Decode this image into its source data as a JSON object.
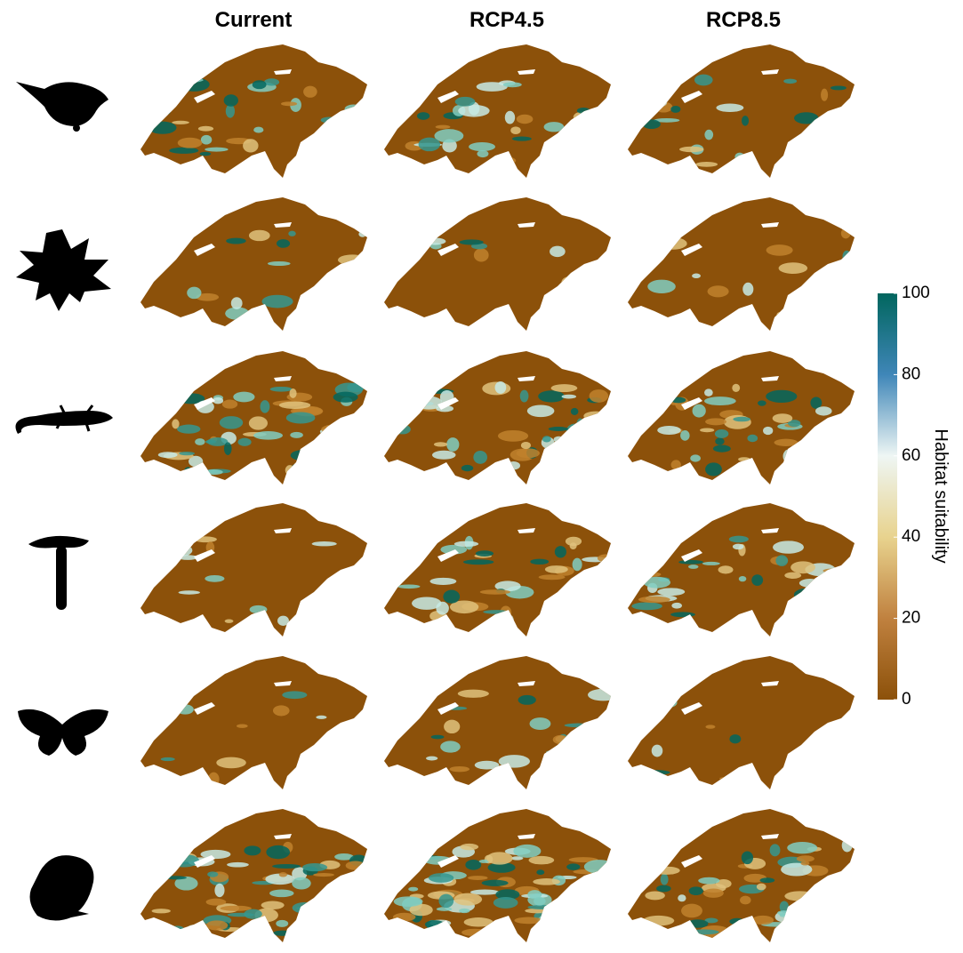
{
  "columns": [
    "Current",
    "RCP4.5",
    "RCP8.5"
  ],
  "colorbar": {
    "label": "Habitat suitability",
    "lim": [
      0,
      100
    ],
    "ticks": [
      0,
      20,
      40,
      60,
      80,
      100
    ],
    "colors": [
      "#8c510a",
      "#c0813f",
      "#e8d38e",
      "#eef6f4",
      "#3f86b8",
      "#01665e"
    ]
  }
}
